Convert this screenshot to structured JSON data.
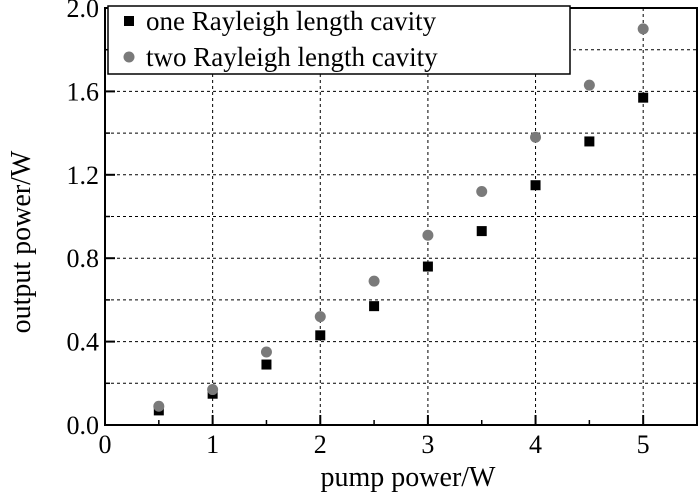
{
  "chart_data": {
    "type": "scatter",
    "xlabel": "pump power/W",
    "ylabel": "output power/W",
    "xlim": [
      0,
      5.5
    ],
    "ylim": [
      0,
      2.0
    ],
    "x_ticks": [
      "0",
      "1",
      "2",
      "3",
      "4",
      "5"
    ],
    "y_ticks": [
      "0.0",
      "0.4",
      "0.8",
      "1.2",
      "1.6",
      "2.0"
    ],
    "grid": true,
    "legend_position": "top-left",
    "series": [
      {
        "name": "one Rayleigh length cavity",
        "marker": "square",
        "color": "#000000",
        "x": [
          0.5,
          1.0,
          1.5,
          2.0,
          2.5,
          3.0,
          3.5,
          4.0,
          4.5,
          5.0
        ],
        "y": [
          0.07,
          0.15,
          0.29,
          0.43,
          0.57,
          0.76,
          0.93,
          1.15,
          1.36,
          1.57
        ]
      },
      {
        "name": "two Rayleigh length cavity",
        "marker": "circle",
        "color": "#7a7a7a",
        "x": [
          0.5,
          1.0,
          1.5,
          2.0,
          2.5,
          3.0,
          3.5,
          4.0,
          4.5,
          5.0
        ],
        "y": [
          0.09,
          0.17,
          0.35,
          0.52,
          0.69,
          0.91,
          1.12,
          1.38,
          1.63,
          1.9
        ]
      }
    ]
  }
}
